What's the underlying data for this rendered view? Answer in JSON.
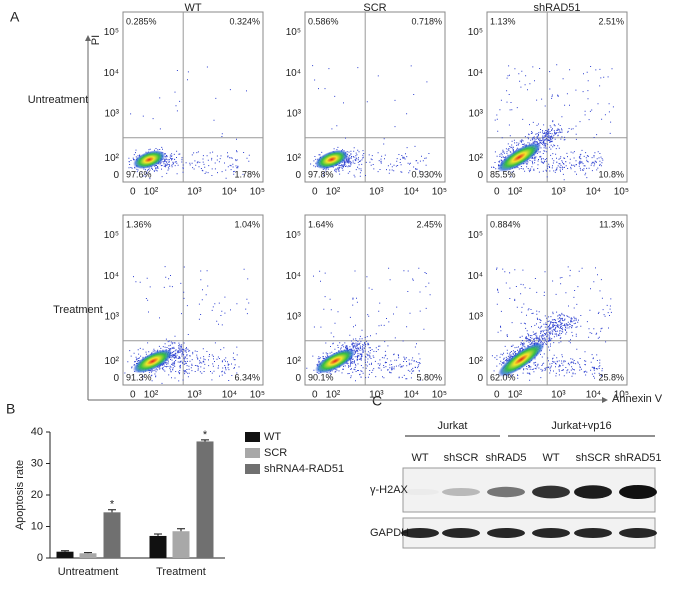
{
  "figure": {
    "panel_labels": [
      "A",
      "B",
      "C"
    ],
    "panel_a": {
      "columns": [
        "WT",
        "SCR",
        "shRAD51"
      ],
      "rows": [
        "Untreatment",
        "Treatment"
      ],
      "y_axis_label": "PI",
      "x_axis_label": "Annexin V",
      "y_ticks": [
        "10⁵",
        "10⁴",
        "10³",
        "10²",
        "0"
      ],
      "x_ticks": [
        "0",
        "10²",
        "10³",
        "10⁴",
        "10⁵"
      ],
      "quadrants": [
        [
          [
            "0.285%",
            "0.324%",
            "97.6%",
            "1.78%"
          ],
          [
            "0.586%",
            "0.718%",
            "97.8%",
            "0.930%"
          ],
          [
            "1.13%",
            "2.51%",
            "85.5%",
            "10.8%"
          ]
        ],
        [
          [
            "1.36%",
            "1.04%",
            "91.3%",
            "6.34%"
          ],
          [
            "1.64%",
            "2.45%",
            "90.1%",
            "5.80%"
          ],
          [
            "0.884%",
            "11.3%",
            "62.0%",
            "25.8%"
          ]
        ]
      ]
    },
    "panel_c": {
      "groups": [
        "Jurkat",
        "Jurkat+vp16"
      ],
      "lanes": [
        "WT",
        "shSCR",
        "shRAD5",
        "WT",
        "shSCR",
        "shRAD51"
      ],
      "rows": [
        "γ-H2AX",
        "GAPDH"
      ]
    }
  },
  "chart_data": {
    "type": "bar",
    "y_label": "Apoptosis rate",
    "categories": [
      "Untreatment",
      "Treatment"
    ],
    "series": [
      {
        "name": "WT",
        "color": "#111111",
        "values": [
          2,
          7
        ],
        "errors": [
          0.3,
          0.6
        ]
      },
      {
        "name": "SCR",
        "color": "#a8a8a8",
        "values": [
          1.5,
          8.5
        ],
        "errors": [
          0.2,
          0.8
        ]
      },
      {
        "name": "shRNA4-RAD51",
        "color": "#707070",
        "values": [
          14.5,
          37
        ],
        "errors": [
          0.8,
          0.5
        ],
        "annotations": [
          "*",
          "*"
        ]
      }
    ],
    "ylim": [
      0,
      40
    ],
    "yticks": [
      0,
      10,
      20,
      30,
      40
    ]
  }
}
